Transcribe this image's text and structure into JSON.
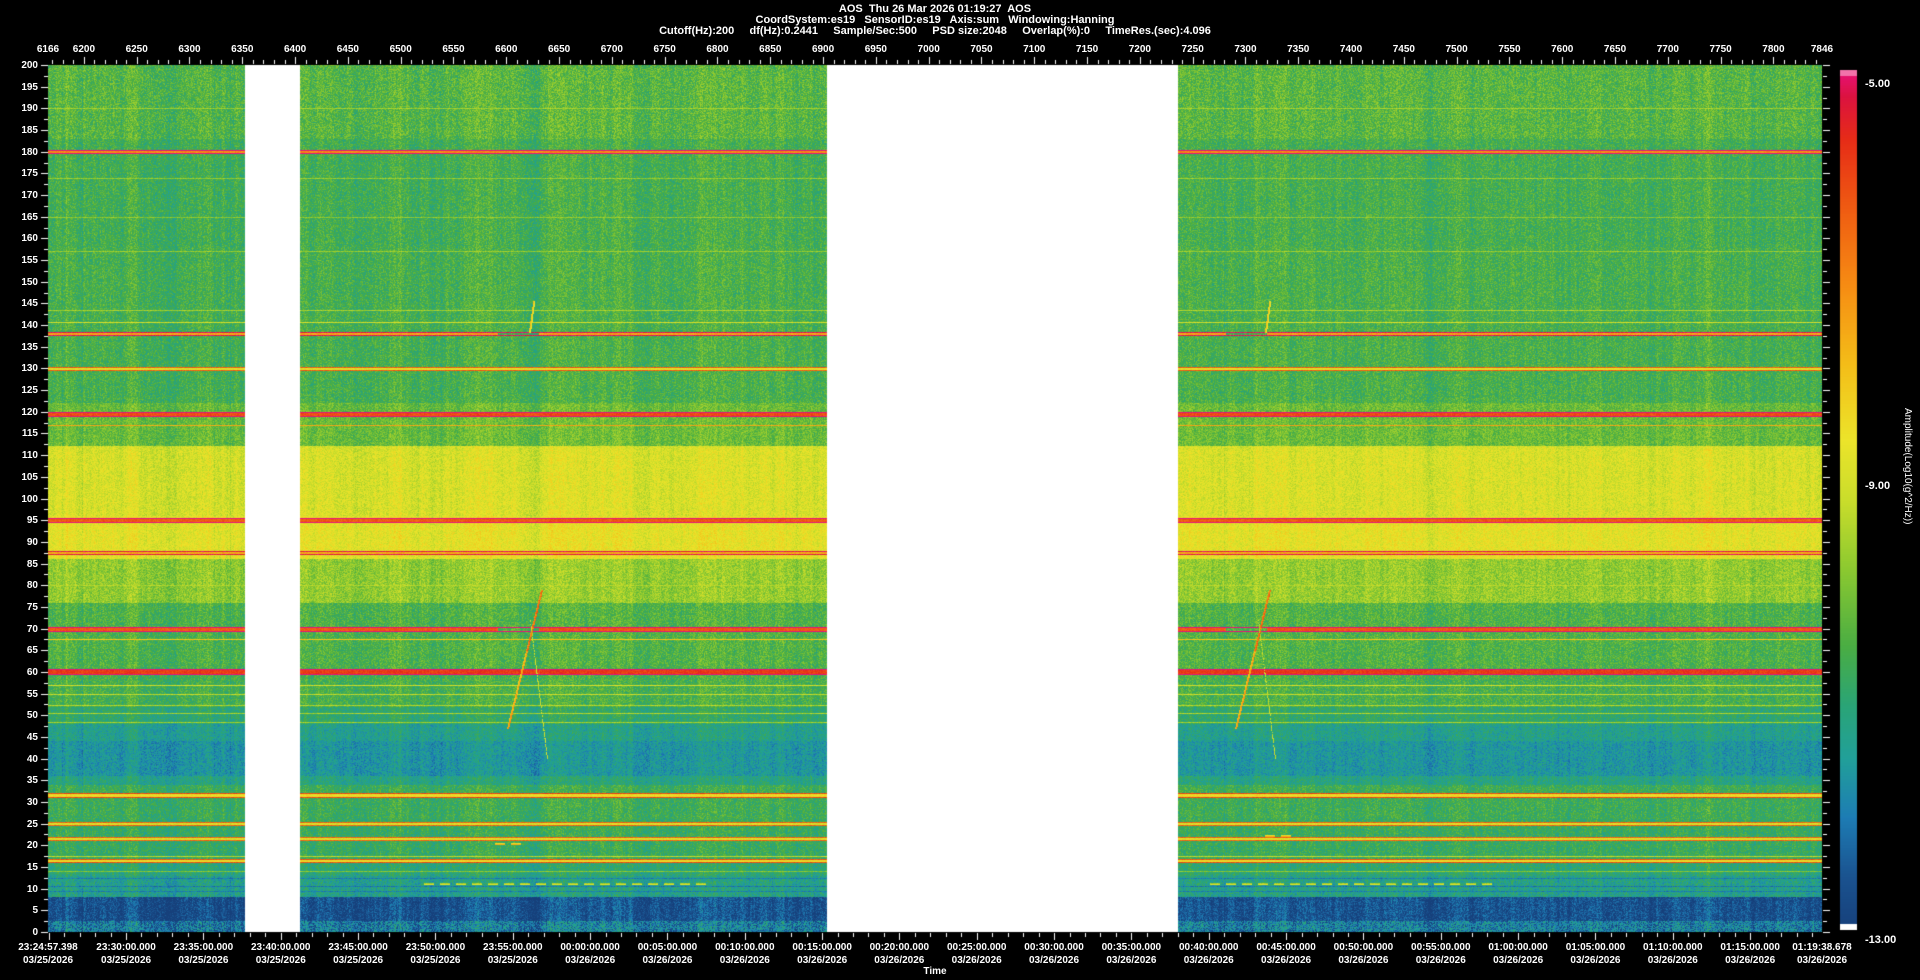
{
  "header": {
    "title_line": "AOS  Thu 26 Mar 2026 01:19:27  AOS",
    "settings_line": "CoordSystem:es19   SensorID:es19   Axis:sum   Windowing:Hanning",
    "processing_line": "Cutoff(Hz):200     df(Hz):0.2441     Sample/Sec:500     PSD size:2048     Overlap(%):0     TimeRes.(sec):4.096"
  },
  "chart_data": {
    "type": "heatmap",
    "title": "AOS  Thu 26 Mar 2026 01:19:27  AOS",
    "x_axis_top": {
      "min": 6166,
      "max": 7846,
      "values": [
        6166,
        6200,
        6250,
        6300,
        6350,
        6400,
        6450,
        6500,
        6550,
        6600,
        6650,
        6700,
        6750,
        6800,
        6850,
        6900,
        6950,
        7000,
        7050,
        7100,
        7150,
        7200,
        7250,
        7300,
        7350,
        7400,
        7450,
        7500,
        7550,
        7600,
        7650,
        7700,
        7750,
        7800,
        7846
      ]
    },
    "y_axis": {
      "min": 0,
      "max": 200,
      "tick_step": 5,
      "minor_step": 2.5,
      "tick_labels": [
        200,
        195,
        190,
        185,
        180,
        175,
        170,
        165,
        160,
        155,
        150,
        145,
        140,
        135,
        130,
        125,
        120,
        115,
        110,
        105,
        100,
        95,
        90,
        85,
        80,
        75,
        70,
        65,
        60,
        55,
        50,
        45,
        40,
        35,
        30,
        25,
        20,
        15,
        10,
        5,
        0
      ]
    },
    "x_axis_bottom": {
      "label": "Time",
      "span_sec": 6881.28,
      "minor_tick_sec": 60,
      "major_every_minutes": 5,
      "ticks": [
        {
          "t": "23:24:57.398",
          "d": "03/25/2026",
          "f": 0.0
        },
        {
          "t": "23:30:00.000",
          "d": "03/25/2026",
          "f": 0.044
        },
        {
          "t": "23:35:00.000",
          "d": "03/25/2026",
          "f": 0.0876
        },
        {
          "t": "23:40:00.000",
          "d": "03/25/2026",
          "f": 0.1312
        },
        {
          "t": "23:45:00.000",
          "d": "03/25/2026",
          "f": 0.1748
        },
        {
          "t": "23:50:00.000",
          "d": "03/25/2026",
          "f": 0.2184
        },
        {
          "t": "23:55:00.000",
          "d": "03/25/2026",
          "f": 0.262
        },
        {
          "t": "00:00:00.000",
          "d": "03/26/2026",
          "f": 0.3056
        },
        {
          "t": "00:05:00.000",
          "d": "03/26/2026",
          "f": 0.3492
        },
        {
          "t": "00:10:00.000",
          "d": "03/26/2026",
          "f": 0.3928
        },
        {
          "t": "00:15:00.000",
          "d": "03/26/2026",
          "f": 0.4364
        },
        {
          "t": "00:20:00.000",
          "d": "03/26/2026",
          "f": 0.4799
        },
        {
          "t": "00:25:00.000",
          "d": "03/26/2026",
          "f": 0.5235
        },
        {
          "t": "00:30:00.000",
          "d": "03/26/2026",
          "f": 0.5671
        },
        {
          "t": "00:35:00.000",
          "d": "03/26/2026",
          "f": 0.6107
        },
        {
          "t": "00:40:00.000",
          "d": "03/26/2026",
          "f": 0.6543
        },
        {
          "t": "00:45:00.000",
          "d": "03/26/2026",
          "f": 0.6979
        },
        {
          "t": "00:50:00.000",
          "d": "03/26/2026",
          "f": 0.7415
        },
        {
          "t": "00:55:00.000",
          "d": "03/26/2026",
          "f": 0.7851
        },
        {
          "t": "01:00:00.000",
          "d": "03/26/2026",
          "f": 0.8287
        },
        {
          "t": "01:05:00.000",
          "d": "03/26/2026",
          "f": 0.8723
        },
        {
          "t": "01:10:00.000",
          "d": "03/26/2026",
          "f": 0.9159
        },
        {
          "t": "01:15:00.000",
          "d": "03/26/2026",
          "f": 0.9595
        },
        {
          "t": "01:19:38.678",
          "d": "03/26/2026",
          "f": 1.0
        }
      ]
    },
    "colorbar": {
      "label": "Amplitude(Log10(g^2/Hz))",
      "amp_max": -5.0,
      "amp_min": -13.0,
      "ticks": [
        "-5.00",
        "-9.00",
        "-13.00"
      ],
      "overflow_top": "#f272aa",
      "underflow_bottom": "#ffffff",
      "stops": [
        [
          0.0,
          "#e8117a"
        ],
        [
          0.03,
          "#db1240"
        ],
        [
          0.08,
          "#e62c17"
        ],
        [
          0.16,
          "#ef5b12"
        ],
        [
          0.25,
          "#f68c13"
        ],
        [
          0.34,
          "#f4bc18"
        ],
        [
          0.43,
          "#ece42a"
        ],
        [
          0.5,
          "#cadd2b"
        ],
        [
          0.58,
          "#8cc930"
        ],
        [
          0.67,
          "#4aad43"
        ],
        [
          0.74,
          "#2aa477"
        ],
        [
          0.8,
          "#21a099"
        ],
        [
          0.87,
          "#1d7cb4"
        ],
        [
          0.94,
          "#1a528f"
        ],
        [
          1.0,
          "#16407b"
        ]
      ]
    },
    "gaps_frac": [
      [
        0.111,
        0.142
      ],
      [
        0.439,
        0.637
      ]
    ],
    "bands": [
      {
        "hi": 200,
        "lo": 183,
        "a": -10.2,
        "s": 0.62
      },
      {
        "hi": 183,
        "lo": 158,
        "a": -10.45,
        "s": 0.55
      },
      {
        "hi": 158,
        "lo": 122,
        "a": -10.4,
        "s": 0.55
      },
      {
        "hi": 122,
        "lo": 112,
        "a": -10.0,
        "s": 0.5
      },
      {
        "hi": 112,
        "lo": 96,
        "a": -8.75,
        "s": 0.45
      },
      {
        "hi": 96,
        "lo": 86,
        "a": -8.55,
        "s": 0.45
      },
      {
        "hi": 86,
        "lo": 76,
        "a": -9.55,
        "s": 0.5
      },
      {
        "hi": 76,
        "lo": 61,
        "a": -10.3,
        "s": 0.55
      },
      {
        "hi": 61,
        "lo": 52,
        "a": -10.4,
        "s": 0.55
      },
      {
        "hi": 52,
        "lo": 48,
        "a": -10.8,
        "s": 0.5
      },
      {
        "hi": 48,
        "lo": 44,
        "a": -11.2,
        "s": 0.5
      },
      {
        "hi": 44,
        "lo": 36,
        "a": -11.5,
        "s": 0.5
      },
      {
        "hi": 36,
        "lo": 34,
        "a": -11.05,
        "s": 0.5
      },
      {
        "hi": 34,
        "lo": 26,
        "a": -10.55,
        "s": 0.55
      },
      {
        "hi": 26,
        "lo": 16,
        "a": -10.65,
        "s": 0.55
      },
      {
        "hi": 16,
        "lo": 13,
        "a": -10.9,
        "s": 0.55
      },
      {
        "hi": 13,
        "lo": 8,
        "a": -11.15,
        "s": 0.6
      },
      {
        "hi": 8,
        "lo": 2.5,
        "a": -12.55,
        "s": 0.55
      },
      {
        "hi": 2.5,
        "lo": 0,
        "a": -11.9,
        "s": 0.9
      }
    ],
    "tonal_lines": [
      {
        "f": 190,
        "a": -9.4,
        "w": 1
      },
      {
        "f": 180,
        "a": -7.0,
        "w": 2
      },
      {
        "f": 174,
        "a": -9.5,
        "w": 1
      },
      {
        "f": 165,
        "a": -9.6,
        "w": 1
      },
      {
        "f": 157,
        "a": -9.5,
        "w": 1
      },
      {
        "f": 143.5,
        "a": -9.3,
        "w": 1
      },
      {
        "f": 140.7,
        "a": -8.8,
        "w": 1
      },
      {
        "f": 138,
        "a": -7.4,
        "w": 2,
        "brk": true
      },
      {
        "f": 129.8,
        "a": -8.6,
        "w": 2
      },
      {
        "f": 119.5,
        "a": -6.1,
        "w": 3
      },
      {
        "f": 117,
        "a": -7.4,
        "w": 1
      },
      {
        "f": 95,
        "a": -6.3,
        "w": 3
      },
      {
        "f": 87.5,
        "a": -7.5,
        "w": 2
      },
      {
        "f": 80,
        "a": -9.2,
        "w": 1
      },
      {
        "f": 70,
        "a": -6.25,
        "w": 3,
        "brk": true
      },
      {
        "f": 67.5,
        "a": -7.9,
        "w": 1
      },
      {
        "f": 60,
        "a": -5.85,
        "w": 4
      },
      {
        "f": 57,
        "a": -8.8,
        "w": 1
      },
      {
        "f": 55,
        "a": -9.0,
        "w": 1
      },
      {
        "f": 52.4,
        "a": -9.2,
        "w": 1
      },
      {
        "f": 50.6,
        "a": -9.3,
        "w": 1
      },
      {
        "f": 48.5,
        "a": -9.4,
        "w": 1
      },
      {
        "f": 31.5,
        "a": -8.3,
        "w": 3
      },
      {
        "f": 25,
        "a": -8.7,
        "w": 2
      },
      {
        "f": 21.5,
        "a": -8.7,
        "w": 2
      },
      {
        "f": 17.5,
        "a": -9.1,
        "w": 1
      },
      {
        "f": 16.3,
        "a": -8.4,
        "w": 2
      },
      {
        "f": 14,
        "a": -9.7,
        "w": 1
      },
      {
        "f": 12.5,
        "a": -11.9,
        "w": 1
      },
      {
        "f": 10.5,
        "a": -12.0,
        "w": 1
      },
      {
        "f": 9.5,
        "a": -11.9,
        "w": 1
      }
    ],
    "chirps": [
      {
        "xf": 0.266
      },
      {
        "xf": 0.6765
      }
    ],
    "minor_chirps": [
      {
        "xf": 0.271
      },
      {
        "xf": 0.686
      }
    ],
    "dashes": [
      {
        "f": 11.3,
        "x0f": 0.212,
        "x1f": 0.372,
        "a": -9.4
      },
      {
        "f": 11.3,
        "x0f": 0.655,
        "x1f": 0.815,
        "a": -9.4
      },
      {
        "f": 20.5,
        "x0f": 0.252,
        "x1f": 0.268,
        "a": -8.3
      },
      {
        "f": 22.3,
        "x0f": 0.686,
        "x1f": 0.7,
        "a": -8.3
      }
    ],
    "noise_sigma": 0.55,
    "gap_color": "#ffffff",
    "background_color": "#000000",
    "tick_color": "#ffffff"
  }
}
